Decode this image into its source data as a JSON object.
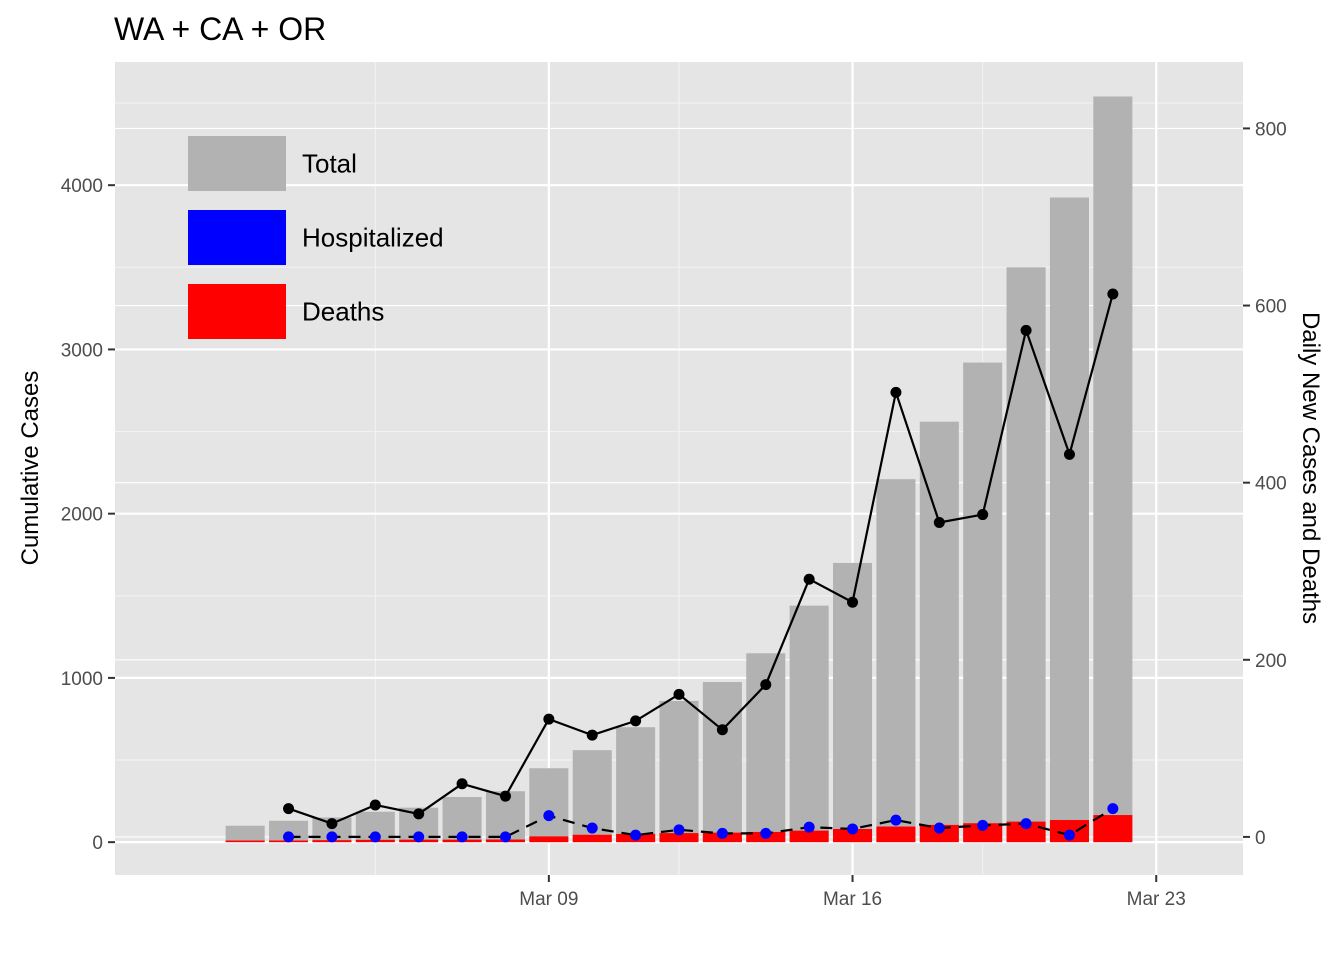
{
  "chart_data": {
    "type": "bar",
    "title": "WA + CA + OR",
    "ylabel": "Cumulative Cases",
    "y2label": "Daily New Cases and Deaths",
    "ylim": [
      -200,
      4750
    ],
    "y2lim": [
      -43,
      875
    ],
    "yticks": [
      0,
      1000,
      2000,
      3000,
      4000
    ],
    "y2ticks": [
      0,
      200,
      400,
      600,
      800
    ],
    "x": [
      "2020-03-02",
      "2020-03-03",
      "2020-03-04",
      "2020-03-05",
      "2020-03-06",
      "2020-03-07",
      "2020-03-08",
      "2020-03-09",
      "2020-03-10",
      "2020-03-11",
      "2020-03-12",
      "2020-03-13",
      "2020-03-14",
      "2020-03-15",
      "2020-03-16",
      "2020-03-17",
      "2020-03-18",
      "2020-03-19",
      "2020-03-20",
      "2020-03-21",
      "2020-03-22",
      "2020-03-23",
      "2020-03-24"
    ],
    "xlim": [
      "2020-02-28",
      "2020-03-25"
    ],
    "xticks": [
      {
        "date": "2020-03-09",
        "label": "Mar 09"
      },
      {
        "date": "2020-03-16",
        "label": "Mar 16"
      },
      {
        "date": "2020-03-23",
        "label": "Mar 23"
      }
    ],
    "minor_xticks": [
      "2020-03-05",
      "2020-03-12",
      "2020-03-19"
    ],
    "legend": {
      "position": "top-left",
      "entries": [
        {
          "label": "Total",
          "color": "#b2b2b2"
        },
        {
          "label": "Hospitalized",
          "color": "#0000ff"
        },
        {
          "label": "Deaths",
          "color": "#ff0000"
        }
      ]
    },
    "grid": true,
    "series": [
      {
        "name": "Total",
        "kind": "bar",
        "axis": "left",
        "color": "#b2b2b2",
        "values": [
          100,
          130,
          150,
          185,
          210,
          275,
          310,
          450,
          560,
          700,
          860,
          975,
          1150,
          1440,
          1700,
          2210,
          2560,
          2920,
          3500,
          3925,
          4540,
          null,
          null
        ]
      },
      {
        "name": "Hospitalized",
        "kind": "bar",
        "axis": "left",
        "color": "#0000ff",
        "values": [
          0,
          0,
          0,
          0,
          0,
          0,
          0,
          0,
          0,
          0,
          0,
          0,
          0,
          0,
          0,
          0,
          0,
          0,
          0,
          0,
          0,
          null,
          null
        ]
      },
      {
        "name": "Deaths",
        "kind": "bar",
        "axis": "left",
        "color": "#ff0000",
        "values": [
          10,
          10,
          12,
          14,
          15,
          15,
          16,
          35,
          45,
          50,
          55,
          58,
          62,
          70,
          80,
          95,
          105,
          115,
          125,
          135,
          165,
          null,
          null
        ]
      },
      {
        "name": "Daily New Cases",
        "kind": "line",
        "axis": "right",
        "color": "#000000",
        "dash": "solid",
        "values": [
          null,
          32,
          15,
          36,
          26,
          60,
          46,
          133,
          115,
          131,
          161,
          121,
          172,
          291,
          265,
          502,
          355,
          364,
          572,
          432,
          613,
          null,
          null
        ]
      },
      {
        "name": "Daily New Deaths",
        "kind": "line",
        "axis": "right",
        "color": "#000000",
        "point_color": "#0000ff",
        "dash": "dashed",
        "values": [
          null,
          0,
          0,
          0,
          0,
          0,
          0,
          24,
          10,
          2,
          8,
          4,
          4,
          11,
          9,
          19,
          10,
          13,
          15,
          2,
          32,
          null,
          null
        ]
      }
    ]
  }
}
